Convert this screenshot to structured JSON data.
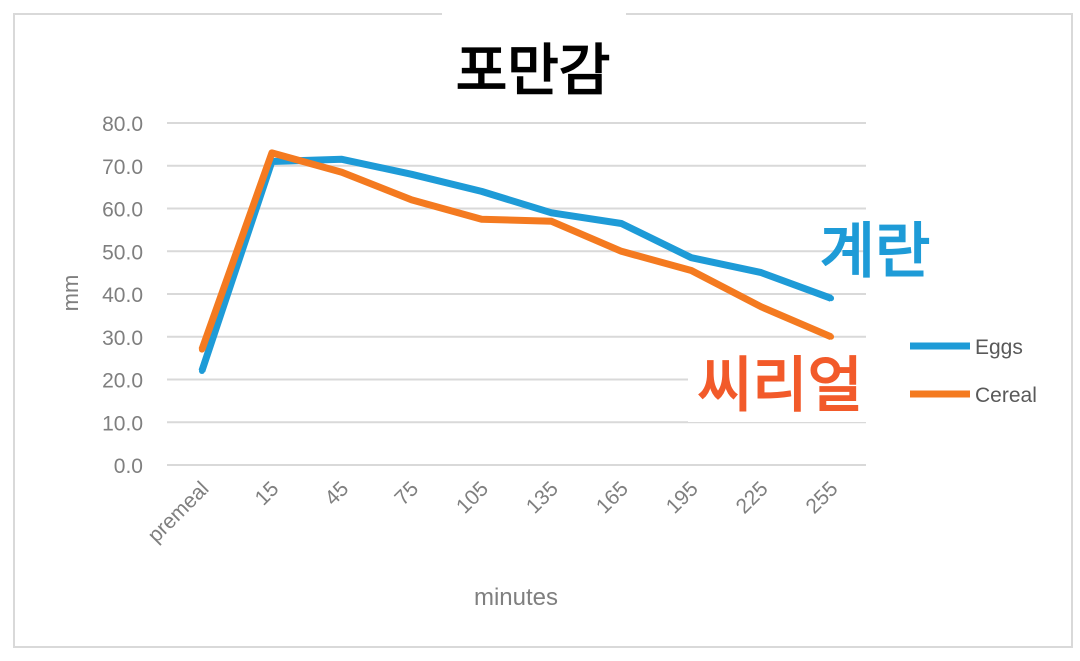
{
  "chart_data": {
    "type": "line",
    "title": "포만감",
    "xlabel": "minutes",
    "ylabel": "mm",
    "categories": [
      "premeal",
      "15",
      "45",
      "75",
      "105",
      "135",
      "165",
      "195",
      "225",
      "255"
    ],
    "ylim": [
      0,
      80
    ],
    "yticks": [
      "0.0",
      "10.0",
      "20.0",
      "30.0",
      "40.0",
      "50.0",
      "60.0",
      "70.0",
      "80.0"
    ],
    "grid": true,
    "legend_position": "right",
    "series": [
      {
        "name": "Eggs",
        "color": "#1e9bd7",
        "values": [
          22,
          71,
          71.5,
          68,
          64,
          59,
          56.5,
          48.5,
          45,
          39
        ]
      },
      {
        "name": "Cereal",
        "color": "#f47a20",
        "values": [
          27,
          73,
          68.5,
          62,
          57.5,
          57,
          50,
          45.5,
          37,
          30
        ]
      }
    ],
    "annotations": [
      {
        "text": "계란",
        "color": "#1e9bd7",
        "series": "Eggs"
      },
      {
        "text": "씨리얼",
        "color": "#f25a2a",
        "series": "Cereal"
      }
    ]
  }
}
